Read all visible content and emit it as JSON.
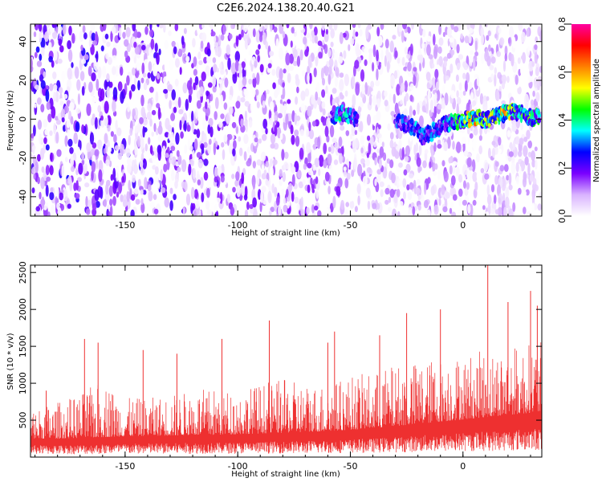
{
  "figure_title": "C2E6.2024.138.20.40.G21",
  "chart_data": [
    {
      "type": "heatmap",
      "title": "",
      "xlabel": "Height of straight line (km)",
      "ylabel": "Frequency (Hz)",
      "xlim": [
        -192,
        35
      ],
      "ylim": [
        -50,
        49
      ],
      "xticks": [
        -150,
        -100,
        -50,
        0
      ],
      "yticks": [
        -40,
        -20,
        0,
        20,
        40
      ],
      "grid": false,
      "colorbar": {
        "label": "Normalized spectral amplitude",
        "range": [
          0.0,
          0.8
        ],
        "ticks": [
          0.0,
          0.2,
          0.4,
          0.6,
          0.8
        ],
        "colors": [
          "#ffffff",
          "#d9b3ff",
          "#7a00ff",
          "#0000ff",
          "#00ffff",
          "#00ff00",
          "#ffff00",
          "#ff8000",
          "#ff0000",
          "#ff00a0"
        ]
      },
      "signal_track": {
        "x": [
          -58,
          -54,
          -50,
          -47,
          -30,
          -26,
          -22,
          -18,
          -14,
          -10,
          -6,
          -2,
          2,
          6,
          10,
          14,
          18,
          22,
          26,
          30,
          34
        ],
        "y": [
          1,
          3,
          2,
          0,
          0,
          -2,
          -4,
          -9,
          -7,
          -4,
          -2,
          -1,
          0,
          1,
          -1,
          1,
          3,
          4,
          3,
          1,
          1
        ],
        "amplitude": [
          0.3,
          0.4,
          0.35,
          0.3,
          0.3,
          0.3,
          0.35,
          0.3,
          0.35,
          0.3,
          0.4,
          0.45,
          0.55,
          0.6,
          0.5,
          0.55,
          0.6,
          0.5,
          0.45,
          0.5,
          0.45
        ]
      }
    },
    {
      "type": "area",
      "title": "",
      "xlabel": "Height of straight line (km)",
      "ylabel": "SNR (10 * v/v)",
      "xlim": [
        -192,
        35
      ],
      "ylim": [
        0,
        2600
      ],
      "xticks": [
        -150,
        -100,
        -50,
        0
      ],
      "yticks": [
        500,
        1000,
        1500,
        2000,
        2500
      ],
      "grid": false,
      "color": "#ee3030",
      "envelope": {
        "x": [
          -192,
          -180,
          -170,
          -160,
          -150,
          -140,
          -130,
          -120,
          -110,
          -100,
          -90,
          -80,
          -70,
          -60,
          -50,
          -40,
          -30,
          -20,
          -10,
          0,
          10,
          20,
          30,
          35
        ],
        "base": [
          250,
          250,
          260,
          270,
          280,
          290,
          290,
          300,
          300,
          310,
          320,
          330,
          340,
          350,
          370,
          390,
          420,
          450,
          480,
          510,
          540,
          570,
          600,
          620
        ],
        "typical_peak": [
          650,
          750,
          850,
          1050,
          800,
          800,
          850,
          900,
          950,
          900,
          1000,
          1050,
          1000,
          1000,
          1100,
          1150,
          1250,
          1300,
          1350,
          1400,
          1450,
          1500,
          1550,
          1600
        ]
      },
      "spikes": [
        {
          "x": -185,
          "y": 900
        },
        {
          "x": -168,
          "y": 1600
        },
        {
          "x": -162,
          "y": 1550
        },
        {
          "x": -142,
          "y": 1450
        },
        {
          "x": -127,
          "y": 1400
        },
        {
          "x": -107,
          "y": 1600
        },
        {
          "x": -86,
          "y": 1850
        },
        {
          "x": -60,
          "y": 1550
        },
        {
          "x": -57,
          "y": 1700
        },
        {
          "x": -37,
          "y": 1650
        },
        {
          "x": -25,
          "y": 1950
        },
        {
          "x": -10,
          "y": 2000
        },
        {
          "x": 11,
          "y": 2600
        },
        {
          "x": 20,
          "y": 2100
        },
        {
          "x": 30,
          "y": 2250
        },
        {
          "x": 33,
          "y": 2050
        }
      ]
    }
  ]
}
